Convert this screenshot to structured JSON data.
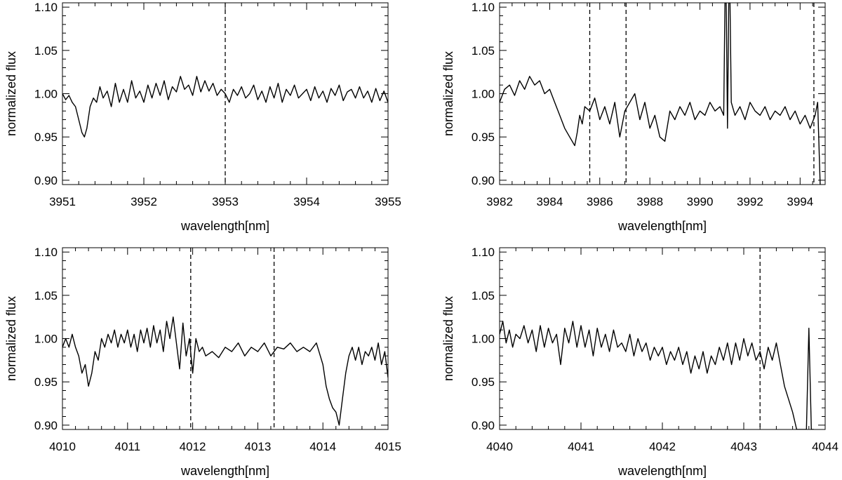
{
  "chart_data": [
    {
      "type": "line",
      "xlabel": "wavelength[nm]",
      "ylabel": "normalized flux",
      "xlim": [
        3951,
        3955
      ],
      "ylim": [
        0.895,
        1.105
      ],
      "xticks": [
        3951,
        3952,
        3953,
        3954,
        3955
      ],
      "yticks": [
        0.9,
        0.95,
        1.0,
        1.05,
        1.1
      ],
      "minor_x_per_major": 5,
      "minor_y_per_major": 5,
      "markers": [
        3953.0
      ],
      "series": [
        {
          "x": [
            3951.0,
            3951.04,
            3951.08,
            3951.12,
            3951.16,
            3951.2,
            3951.24,
            3951.27,
            3951.3,
            3951.34,
            3951.38,
            3951.42,
            3951.46,
            3951.5,
            3951.55,
            3951.6,
            3951.65,
            3951.7,
            3951.75,
            3951.8,
            3951.85,
            3951.9,
            3951.95,
            3952.0,
            3952.05,
            3952.1,
            3952.15,
            3952.2,
            3952.25,
            3952.3,
            3952.35,
            3952.4,
            3952.45,
            3952.5,
            3952.55,
            3952.6,
            3952.65,
            3952.7,
            3952.75,
            3952.8,
            3952.85,
            3952.9,
            3952.95,
            3953.0,
            3953.05,
            3953.1,
            3953.15,
            3953.2,
            3953.25,
            3953.3,
            3953.35,
            3953.4,
            3953.45,
            3953.5,
            3953.55,
            3953.6,
            3953.65,
            3953.7,
            3953.75,
            3953.8,
            3953.85,
            3953.9,
            3953.95,
            3954.0,
            3954.05,
            3954.1,
            3954.15,
            3954.2,
            3954.25,
            3954.3,
            3954.35,
            3954.4,
            3954.45,
            3954.5,
            3954.55,
            3954.6,
            3954.65,
            3954.7,
            3954.75,
            3954.8,
            3954.85,
            3954.9,
            3954.95,
            3955.0
          ],
          "y": [
            1.0,
            0.993,
            0.998,
            0.99,
            0.985,
            0.97,
            0.955,
            0.95,
            0.96,
            0.985,
            0.995,
            0.99,
            1.008,
            0.995,
            1.003,
            0.985,
            1.012,
            0.99,
            1.005,
            0.99,
            1.015,
            0.995,
            1.003,
            0.99,
            1.01,
            0.995,
            1.012,
            0.998,
            1.015,
            0.993,
            1.008,
            1.002,
            1.02,
            1.005,
            1.01,
            0.998,
            1.02,
            1.002,
            1.015,
            1.003,
            1.012,
            0.998,
            1.005,
            1.0,
            0.99,
            1.005,
            0.998,
            1.008,
            0.995,
            1.0,
            1.01,
            0.993,
            1.003,
            0.99,
            1.008,
            0.995,
            1.012,
            0.99,
            1.005,
            0.998,
            1.01,
            0.995,
            1.0,
            1.005,
            0.992,
            1.008,
            0.995,
            1.003,
            0.99,
            1.006,
            0.998,
            1.01,
            0.992,
            1.002,
            1.005,
            0.995,
            1.008,
            0.995,
            1.003,
            0.99,
            1.006,
            0.992,
            1.003,
            0.99
          ]
        }
      ]
    },
    {
      "type": "line",
      "xlabel": "wavelength[nm]",
      "ylabel": "normalized flux",
      "xlim": [
        3982,
        3995
      ],
      "ylim": [
        0.895,
        1.105
      ],
      "xticks": [
        3982,
        3984,
        3986,
        3988,
        3990,
        3992,
        3994
      ],
      "yticks": [
        0.9,
        0.95,
        1.0,
        1.05,
        1.1
      ],
      "minor_x_per_major": 4,
      "minor_y_per_major": 5,
      "markers": [
        3985.6,
        3987.05,
        3994.55
      ],
      "series": [
        {
          "x": [
            3982.0,
            3982.2,
            3982.4,
            3982.6,
            3982.8,
            3983.0,
            3983.2,
            3983.4,
            3983.6,
            3983.8,
            3984.0,
            3984.2,
            3984.4,
            3984.6,
            3984.8,
            3985.0,
            3985.1,
            3985.2,
            3985.3,
            3985.4,
            3985.6,
            3985.8,
            3986.0,
            3986.2,
            3986.4,
            3986.6,
            3986.8,
            3987.0,
            3987.2,
            3987.4,
            3987.6,
            3987.8,
            3988.0,
            3988.2,
            3988.4,
            3988.6,
            3988.8,
            3989.0,
            3989.2,
            3989.4,
            3989.6,
            3989.8,
            3990.0,
            3990.2,
            3990.4,
            3990.6,
            3990.8,
            3990.95,
            3991.0,
            3991.05,
            3991.1,
            3991.15,
            3991.2,
            3991.25,
            3991.4,
            3991.6,
            3991.8,
            3992.0,
            3992.2,
            3992.4,
            3992.6,
            3992.8,
            3993.0,
            3993.2,
            3993.4,
            3993.6,
            3993.8,
            3994.0,
            3994.2,
            3994.4,
            3994.6,
            3994.7,
            3994.8
          ],
          "y": [
            0.99,
            1.005,
            1.01,
            0.998,
            1.015,
            1.005,
            1.02,
            1.01,
            1.015,
            1.0,
            1.005,
            0.99,
            0.975,
            0.96,
            0.95,
            0.94,
            0.955,
            0.975,
            0.965,
            0.985,
            0.98,
            0.995,
            0.97,
            0.985,
            0.965,
            0.99,
            0.95,
            0.98,
            0.99,
            1.0,
            0.97,
            0.99,
            0.96,
            0.975,
            0.95,
            0.945,
            0.98,
            0.97,
            0.985,
            0.975,
            0.99,
            0.97,
            0.98,
            0.975,
            0.99,
            0.98,
            0.985,
            0.975,
            1.105,
            1.105,
            0.96,
            1.105,
            1.105,
            0.99,
            0.975,
            0.985,
            0.97,
            0.99,
            0.98,
            0.975,
            0.985,
            0.97,
            0.98,
            0.975,
            0.985,
            0.97,
            0.98,
            0.965,
            0.975,
            0.96,
            0.975,
            0.99,
            0.895
          ]
        }
      ]
    },
    {
      "type": "line",
      "xlabel": "wavelength[nm]",
      "ylabel": "normalized flux",
      "xlim": [
        4010,
        4015
      ],
      "ylim": [
        0.895,
        1.105
      ],
      "xticks": [
        4010,
        4011,
        4012,
        4013,
        4014,
        4015
      ],
      "yticks": [
        0.9,
        0.95,
        1.0,
        1.05,
        1.1
      ],
      "minor_x_per_major": 5,
      "minor_y_per_major": 5,
      "markers": [
        4011.97,
        4013.25
      ],
      "series": [
        {
          "x": [
            4010.0,
            4010.05,
            4010.1,
            4010.15,
            4010.2,
            4010.25,
            4010.3,
            4010.35,
            4010.4,
            4010.45,
            4010.5,
            4010.55,
            4010.6,
            4010.65,
            4010.7,
            4010.75,
            4010.8,
            4010.85,
            4010.9,
            4010.95,
            4011.0,
            4011.05,
            4011.1,
            4011.15,
            4011.2,
            4011.25,
            4011.3,
            4011.35,
            4011.4,
            4011.45,
            4011.5,
            4011.55,
            4011.6,
            4011.65,
            4011.7,
            4011.75,
            4011.8,
            4011.85,
            4011.9,
            4011.95,
            4012.0,
            4012.05,
            4012.1,
            4012.15,
            4012.2,
            4012.3,
            4012.4,
            4012.5,
            4012.6,
            4012.7,
            4012.8,
            4012.9,
            4013.0,
            4013.1,
            4013.2,
            4013.3,
            4013.4,
            4013.5,
            4013.6,
            4013.7,
            4013.8,
            4013.9,
            4014.0,
            4014.05,
            4014.1,
            4014.15,
            4014.2,
            4014.25,
            4014.3,
            4014.35,
            4014.4,
            4014.45,
            4014.5,
            4014.55,
            4014.6,
            4014.65,
            4014.7,
            4014.75,
            4014.8,
            4014.85,
            4014.9,
            4014.95,
            4015.0
          ],
          "y": [
            0.99,
            1.0,
            0.99,
            1.005,
            0.99,
            0.98,
            0.96,
            0.97,
            0.945,
            0.96,
            0.985,
            0.975,
            1.0,
            0.99,
            1.005,
            0.995,
            1.01,
            0.99,
            1.005,
            0.995,
            1.01,
            0.99,
            1.005,
            0.985,
            1.01,
            0.995,
            1.012,
            0.99,
            1.015,
            0.995,
            1.01,
            0.985,
            1.02,
            1.0,
            1.025,
            0.995,
            0.965,
            1.018,
            0.98,
            1.0,
            0.96,
            1.0,
            0.985,
            0.99,
            0.98,
            0.985,
            0.978,
            0.99,
            0.985,
            0.995,
            0.98,
            0.99,
            0.985,
            0.995,
            0.98,
            0.99,
            0.988,
            0.995,
            0.985,
            0.99,
            0.985,
            0.995,
            0.97,
            0.945,
            0.93,
            0.92,
            0.915,
            0.9,
            0.93,
            0.96,
            0.98,
            0.99,
            0.975,
            0.99,
            0.97,
            0.985,
            0.98,
            0.99,
            0.975,
            0.995,
            0.97,
            0.985,
            0.955
          ]
        }
      ]
    },
    {
      "type": "line",
      "xlabel": "wavelength[nm]",
      "ylabel": "normalized flux",
      "xlim": [
        4040,
        4044
      ],
      "ylim": [
        0.895,
        1.105
      ],
      "xticks": [
        4040,
        4041,
        4042,
        4043,
        4044
      ],
      "yticks": [
        0.9,
        0.95,
        1.0,
        1.05,
        1.1
      ],
      "minor_x_per_major": 5,
      "minor_y_per_major": 5,
      "markers": [
        4043.2
      ],
      "series": [
        {
          "x": [
            4040.0,
            4040.04,
            4040.08,
            4040.12,
            4040.16,
            4040.2,
            4040.25,
            4040.3,
            4040.35,
            4040.4,
            4040.45,
            4040.5,
            4040.55,
            4040.6,
            4040.65,
            4040.7,
            4040.75,
            4040.8,
            4040.85,
            4040.9,
            4040.95,
            4041.0,
            4041.05,
            4041.1,
            4041.15,
            4041.2,
            4041.25,
            4041.3,
            4041.35,
            4041.4,
            4041.45,
            4041.5,
            4041.55,
            4041.6,
            4041.65,
            4041.7,
            4041.75,
            4041.8,
            4041.85,
            4041.9,
            4041.95,
            4042.0,
            4042.05,
            4042.1,
            4042.15,
            4042.2,
            4042.25,
            4042.3,
            4042.35,
            4042.4,
            4042.45,
            4042.5,
            4042.55,
            4042.6,
            4042.65,
            4042.7,
            4042.75,
            4042.8,
            4042.85,
            4042.9,
            4042.95,
            4043.0,
            4043.05,
            4043.1,
            4043.15,
            4043.2,
            4043.25,
            4043.3,
            4043.35,
            4043.4,
            4043.45,
            4043.5,
            4043.55,
            4043.6,
            4043.65,
            4043.7,
            4043.74,
            4043.77,
            4043.8,
            4043.83,
            4043.86
          ],
          "y": [
            1.005,
            1.02,
            0.995,
            1.01,
            0.99,
            1.005,
            1.0,
            1.015,
            0.995,
            1.01,
            0.985,
            1.015,
            0.99,
            1.012,
            0.995,
            1.005,
            0.97,
            1.012,
            0.995,
            1.02,
            0.99,
            1.015,
            0.99,
            1.01,
            0.98,
            1.012,
            0.99,
            1.005,
            0.985,
            1.01,
            0.99,
            0.995,
            0.985,
            1.005,
            0.98,
            1.0,
            0.985,
            0.995,
            0.975,
            0.99,
            0.98,
            0.99,
            0.97,
            0.985,
            0.975,
            0.99,
            0.97,
            0.985,
            0.96,
            0.98,
            0.965,
            0.985,
            0.96,
            0.98,
            0.97,
            0.99,
            0.975,
            0.995,
            0.97,
            0.995,
            0.975,
            1.0,
            0.98,
            0.995,
            0.975,
            0.985,
            0.965,
            0.99,
            0.975,
            0.995,
            0.97,
            0.945,
            0.93,
            0.915,
            0.895,
            0.895,
            0.895,
            0.895,
            1.012,
            0.895,
            0.895
          ]
        }
      ]
    }
  ]
}
